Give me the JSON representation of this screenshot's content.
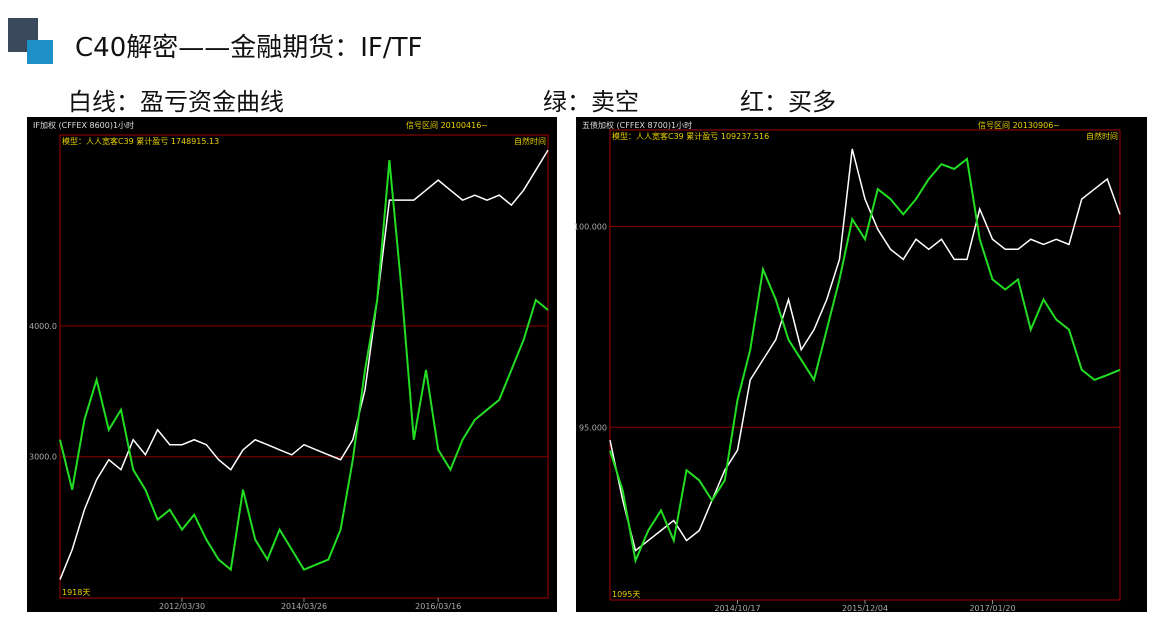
{
  "header": {
    "title": "C40解密——金融期货：IF/TF"
  },
  "legend": [
    "白线：盈亏资金曲线",
    "绿：卖空",
    "红：买多"
  ],
  "chart_data": [
    {
      "type": "line",
      "instrument": "IF加权 (CFFEX 8600)1小时",
      "signal_range": "信号区间 20100416~",
      "model": "模型：人人宽客C39 累计盈亏 1748915.13",
      "time_mode": "自然时间",
      "span": "1918天",
      "categories": [
        null,
        null,
        null,
        null,
        null,
        null,
        null,
        null,
        null,
        null,
        "2012/03/30",
        null,
        null,
        null,
        null,
        null,
        null,
        null,
        null,
        null,
        "2014/03/26",
        null,
        null,
        null,
        null,
        null,
        null,
        null,
        null,
        null,
        null,
        "2016/03/16",
        null,
        null,
        null,
        null,
        null,
        null,
        null,
        null,
        null
      ],
      "series": [
        {
          "color": "#22dd22",
          "values": [
            3130,
            2748,
            3282,
            3588,
            3206,
            3359,
            2901,
            2748,
            2519,
            2595,
            2443,
            2557,
            2366,
            2214,
            2137,
            2748,
            2366,
            2214,
            2443,
            2290,
            2137,
            2176,
            2214,
            2443,
            2977,
            3664,
            4198,
            5267,
            4275,
            3130,
            3664,
            3053,
            2901,
            3130,
            3282,
            3359,
            3435,
            3664,
            3893,
            4198,
            4122
          ]
        },
        {
          "color": "#ffffff",
          "values": [
            2061,
            2290,
            2595,
            2824,
            2977,
            2901,
            3130,
            3015,
            3206,
            3092,
            3092,
            3130,
            3092,
            2977,
            2901,
            3053,
            3130,
            3092,
            3053,
            3015,
            3092,
            3053,
            3015,
            2977,
            3130,
            3511,
            4198,
            4962,
            4962,
            4962,
            5038,
            5115,
            5038,
            4962,
            5000,
            4962,
            5000,
            4924,
            5038,
            5191,
            5344
          ]
        }
      ],
      "ylim": [
        1920,
        5460
      ],
      "yticks": [
        {
          "value": 3000,
          "label": "3000.0"
        },
        {
          "value": 4000,
          "label": "4000.0"
        }
      ],
      "grid": true
    },
    {
      "type": "line",
      "instrument": "五债加权 (CFFEX 8700)1小时",
      "signal_range": "信号区间 20130906~",
      "model": "模型：人人宽客C39 累计盈亏 109237.516",
      "time_mode": "自然时间",
      "span": "1095天",
      "categories": [
        null,
        null,
        null,
        null,
        null,
        null,
        null,
        null,
        null,
        null,
        "2014/10/17",
        null,
        null,
        null,
        null,
        null,
        null,
        null,
        null,
        null,
        "2015/12/04",
        null,
        null,
        null,
        null,
        null,
        null,
        null,
        null,
        null,
        "2017/01/20",
        null,
        null,
        null,
        null,
        null,
        null,
        null,
        null,
        null,
        null
      ],
      "series": [
        {
          "color": "#22dd22",
          "values": [
            94.42,
            93.42,
            91.68,
            92.43,
            92.93,
            92.18,
            93.93,
            93.68,
            93.18,
            93.68,
            95.68,
            96.93,
            98.93,
            98.18,
            97.18,
            96.68,
            96.18,
            97.43,
            98.68,
            100.18,
            99.68,
            100.93,
            100.68,
            100.3,
            100.68,
            101.18,
            101.55,
            101.43,
            101.68,
            99.68,
            98.68,
            98.43,
            98.68,
            97.43,
            98.18,
            97.68,
            97.43,
            96.43,
            96.18,
            96.3,
            96.43
          ]
        },
        {
          "color": "#ffffff",
          "values": [
            94.68,
            93.18,
            91.93,
            92.18,
            92.43,
            92.68,
            92.18,
            92.43,
            93.18,
            93.93,
            94.43,
            96.18,
            96.68,
            97.18,
            98.18,
            96.93,
            97.43,
            98.18,
            99.18,
            101.93,
            100.68,
            99.93,
            99.43,
            99.18,
            99.68,
            99.43,
            99.68,
            99.18,
            99.18,
            100.43,
            99.68,
            99.43,
            99.43,
            99.68,
            99.55,
            99.68,
            99.55,
            100.68,
            100.93,
            101.18,
            100.3
          ]
        }
      ],
      "ylim": [
        90.7,
        102.4
      ],
      "yticks": [
        {
          "value": 95,
          "label": "95.000"
        },
        {
          "value": 100,
          "label": "100.000"
        }
      ],
      "grid": true
    }
  ]
}
